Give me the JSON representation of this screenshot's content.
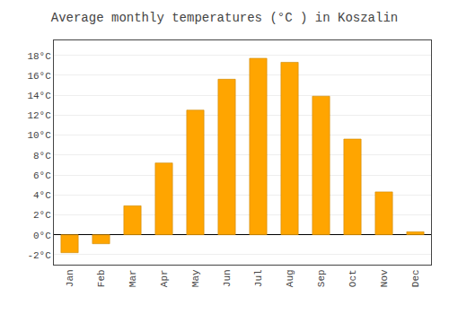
{
  "chart_data": {
    "type": "bar",
    "title": "Average monthly temperatures (°C ) in Koszalin",
    "categories": [
      "Jan",
      "Feb",
      "Mar",
      "Apr",
      "May",
      "Jun",
      "Jul",
      "Aug",
      "Sep",
      "Oct",
      "Nov",
      "Dec"
    ],
    "values": [
      -1.8,
      -0.9,
      2.9,
      7.2,
      12.5,
      15.6,
      17.7,
      17.3,
      13.9,
      9.6,
      4.3,
      0.3
    ],
    "color": "#FFA500",
    "ylim": [
      -3.0,
      19.5
    ],
    "yticks": [
      {
        "value": -2,
        "label": "-2°C"
      },
      {
        "value": 0,
        "label": "0°C"
      },
      {
        "value": 2,
        "label": "2°C"
      },
      {
        "value": 4,
        "label": "4°C"
      },
      {
        "value": 6,
        "label": "6°C"
      },
      {
        "value": 8,
        "label": "8°C"
      },
      {
        "value": 10,
        "label": "10°C"
      },
      {
        "value": 12,
        "label": "12°C"
      },
      {
        "value": 14,
        "label": "14°C"
      },
      {
        "value": 16,
        "label": "16°C"
      },
      {
        "value": 18,
        "label": "18°C"
      }
    ],
    "grid": true
  }
}
